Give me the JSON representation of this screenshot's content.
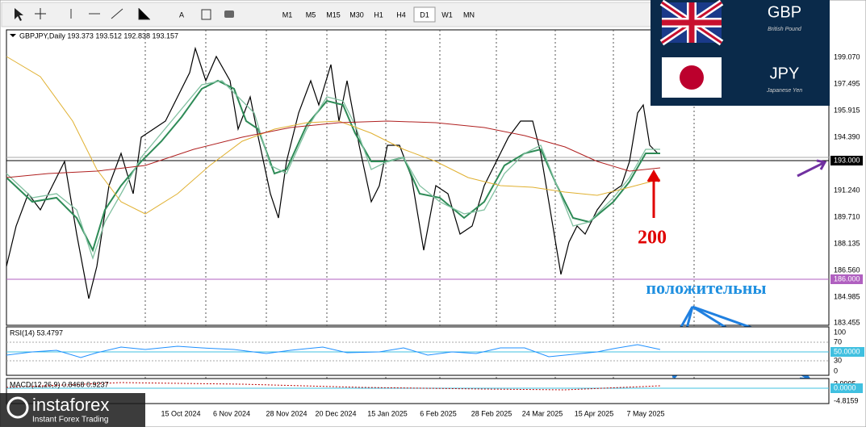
{
  "toolbar": {
    "text_tool": "A",
    "timeframes": [
      "M1",
      "M5",
      "M15",
      "M30",
      "H1",
      "H4",
      "D1",
      "W1",
      "MN"
    ],
    "active": "D1"
  },
  "chart": {
    "header": "GBPJPY,Daily  193.373 193.512 192.838 193.157",
    "price_labels": [
      "199.070",
      "197.495",
      "195.915",
      "194.390",
      "193.000",
      "191.240",
      "189.710",
      "188.135",
      "186.560",
      "186.000",
      "184.985",
      "183.455"
    ],
    "dates": [
      "15 Oct 2024",
      "6 Nov 2024",
      "28 Nov 2024",
      "20 Dec 2024",
      "15 Jan 2025",
      "6 Feb 2025",
      "28 Feb 2025",
      "24 Mar 2025",
      "15 Apr 2025",
      "7 May 2025"
    ],
    "annotation_ma": "200",
    "annotation_text": "положительны"
  },
  "rsi": {
    "label": "RSI(14) 53.4797",
    "levels": [
      "100",
      "70",
      "50.0000",
      "30",
      "0"
    ]
  },
  "macd": {
    "label": "MACD(12,26,9) 0.8468 0.9237",
    "levels": [
      "3.9995",
      "0.0000",
      "-4.8159"
    ]
  },
  "logo": {
    "base": "GBP",
    "base_name": "British Pound",
    "quote": "JPY",
    "quote_name": "Japanese Yen"
  },
  "watermark": {
    "brand": "instaforex",
    "tagline": "Instant Forex Trading"
  }
}
